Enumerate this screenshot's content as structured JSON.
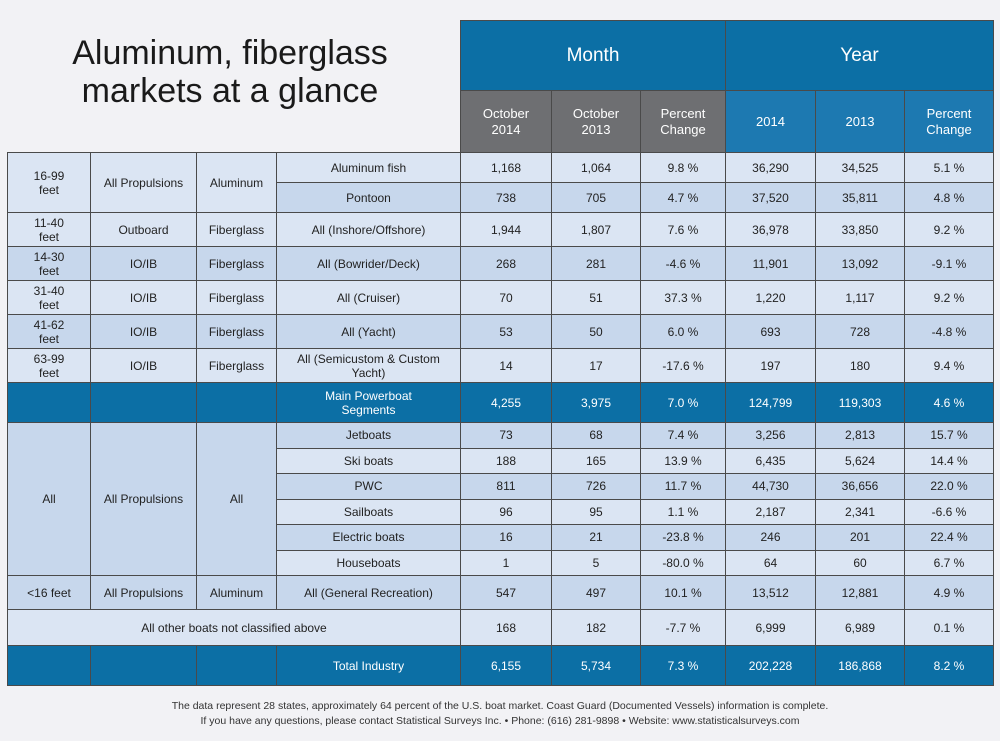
{
  "title": "Aluminum, fiberglass markets at a glance",
  "header": {
    "groups": [
      "Month",
      "Year"
    ],
    "columns": [
      "October 2014",
      "October 2013",
      "Percent Change",
      "2014",
      "2013",
      "Percent Change"
    ]
  },
  "groups": [
    {
      "size": "16-99 feet",
      "propulsion": "All Propulsions",
      "material": "Aluminum",
      "rows": [
        {
          "segment": "Aluminum fish",
          "values": [
            "1,168",
            "1,064",
            "9.8 %",
            "36,290",
            "34,525",
            "5.1 %"
          ]
        },
        {
          "segment": "Pontoon",
          "values": [
            "738",
            "705",
            "4.7 %",
            "37,520",
            "35,811",
            "4.8 %"
          ]
        }
      ]
    },
    {
      "size": "11-40 feet",
      "propulsion": "Outboard",
      "material": "Fiberglass",
      "rows": [
        {
          "segment": "All (Inshore/Offshore)",
          "values": [
            "1,944",
            "1,807",
            "7.6 %",
            "36,978",
            "33,850",
            "9.2 %"
          ]
        }
      ]
    },
    {
      "size": "14-30 feet",
      "propulsion": "IO/IB",
      "material": "Fiberglass",
      "rows": [
        {
          "segment": "All (Bowrider/Deck)",
          "values": [
            "268",
            "281",
            "-4.6 %",
            "11,901",
            "13,092",
            "-9.1 %"
          ]
        }
      ]
    },
    {
      "size": "31-40 feet",
      "propulsion": "IO/IB",
      "material": "Fiberglass",
      "rows": [
        {
          "segment": "All (Cruiser)",
          "values": [
            "70",
            "51",
            "37.3 %",
            "1,220",
            "1,117",
            "9.2 %"
          ]
        }
      ]
    },
    {
      "size": "41-62 feet",
      "propulsion": "IO/IB",
      "material": "Fiberglass",
      "rows": [
        {
          "segment": "All (Yacht)",
          "values": [
            "53",
            "50",
            "6.0 %",
            "693",
            "728",
            "-4.8 %"
          ]
        }
      ]
    },
    {
      "size": "63-99 feet",
      "propulsion": "IO/IB",
      "material": "Fiberglass",
      "rows": [
        {
          "segment": "All (Semicustom & Custom Yacht)",
          "values": [
            "14",
            "17",
            "-17.6 %",
            "197",
            "180",
            "9.4 %"
          ]
        }
      ]
    },
    {
      "rows": [
        {
          "segment": "Main Powerboat Segments",
          "values": [
            "4,255",
            "3,975",
            "7.0 %",
            "124,799",
            "119,303",
            "4.6 %"
          ]
        }
      ]
    },
    {
      "size": "All",
      "propulsion": "All Propulsions",
      "material": "All",
      "rows": [
        {
          "segment": "Jetboats",
          "values": [
            "73",
            "68",
            "7.4 %",
            "3,256",
            "2,813",
            "15.7 %"
          ]
        },
        {
          "segment": "Ski boats",
          "values": [
            "188",
            "165",
            "13.9 %",
            "6,435",
            "5,624",
            "14.4 %"
          ]
        },
        {
          "segment": "PWC",
          "values": [
            "811",
            "726",
            "11.7 %",
            "44,730",
            "36,656",
            "22.0 %"
          ]
        },
        {
          "segment": "Sailboats",
          "values": [
            "96",
            "95",
            "1.1 %",
            "2,187",
            "2,341",
            "-6.6 %"
          ]
        },
        {
          "segment": "Electric boats",
          "values": [
            "16",
            "21",
            "-23.8 %",
            "246",
            "201",
            "22.4 %"
          ]
        },
        {
          "segment": "Houseboats",
          "values": [
            "1",
            "5",
            "-80.0 %",
            "64",
            "60",
            "6.7 %"
          ]
        }
      ]
    },
    {
      "size": "<16 feet",
      "propulsion": "All Propulsions",
      "material": "Aluminum",
      "rows": [
        {
          "segment": "All (General Recreation)",
          "values": [
            "547",
            "497",
            "10.1 %",
            "13,512",
            "12,881",
            "4.9 %"
          ]
        }
      ]
    },
    {
      "description": "All other boats not classified above",
      "rows": [
        {
          "values": [
            "168",
            "182",
            "-7.7 %",
            "6,999",
            "6,989",
            "0.1 %"
          ]
        }
      ]
    },
    {
      "rows": [
        {
          "segment": "Total Industry",
          "values": [
            "6,155",
            "5,734",
            "7.3 %",
            "202,228",
            "186,868",
            "8.2 %"
          ]
        }
      ]
    }
  ],
  "footer": [
    "The data represent 28 states, approximately 64 percent of the U.S. boat market. Coast Guard (Documented Vessels) information is complete.",
    "If you have any questions, please contact Statistical Surveys Inc. • Phone: (616) 281-9898 • Website: www.statisticalsurveys.com"
  ]
}
